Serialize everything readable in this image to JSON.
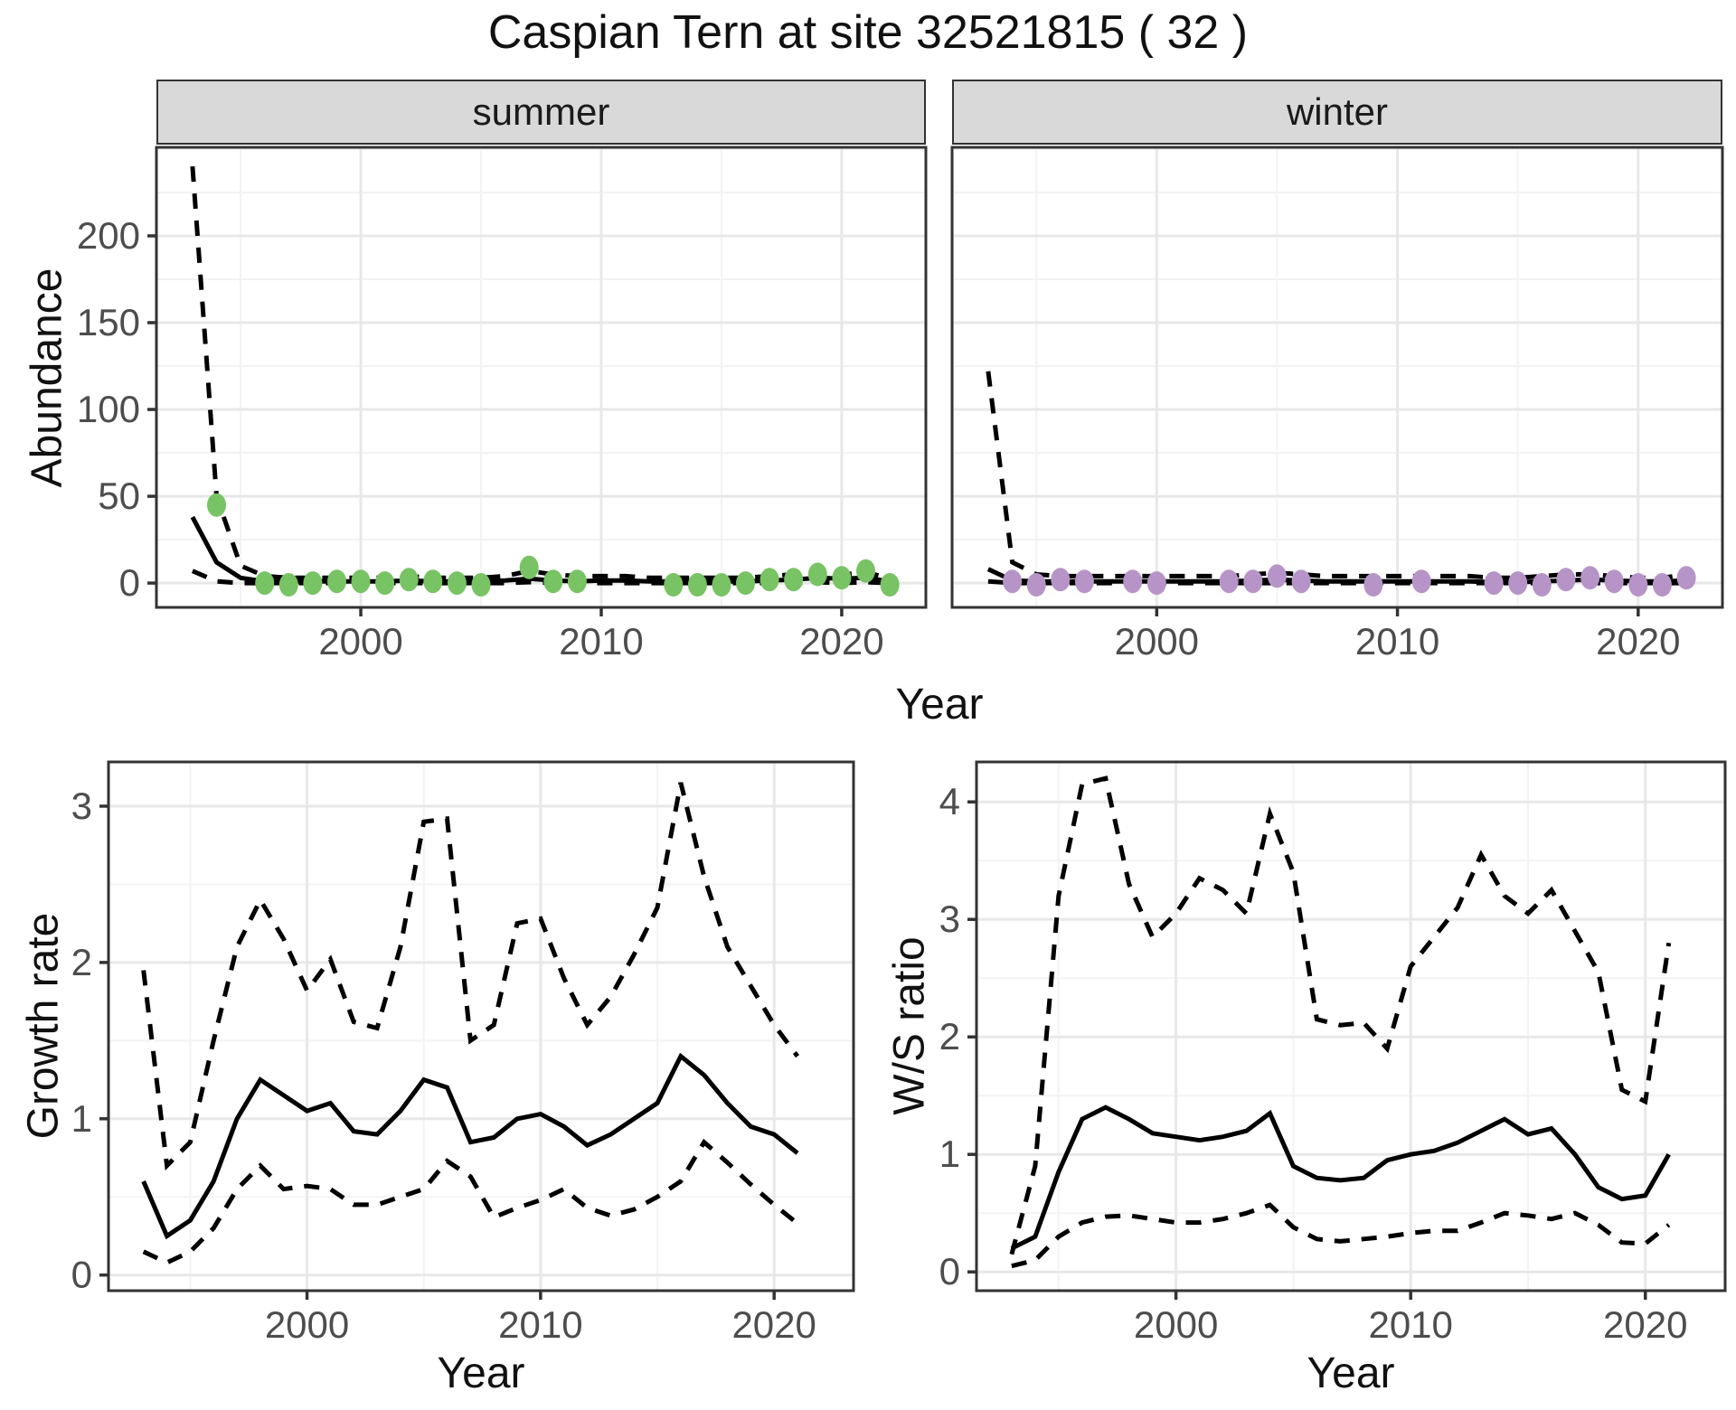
{
  "title": "Caspian Tern at site 32521815 ( 32 )",
  "colors": {
    "summer_point": "#78C364",
    "winter_point": "#B794C7",
    "line": "#000000",
    "grid_major": "#E8E8E8",
    "grid_minor": "#F3F3F3",
    "panel_border": "#333333",
    "strip_fill": "#D9D9D9",
    "axis_text": "#4D4D4D"
  },
  "top": {
    "ylabel": "Abundance",
    "xlabel": "Year",
    "facets": [
      {
        "label": "summer"
      },
      {
        "label": "winter"
      }
    ]
  },
  "bottom_left": {
    "ylabel": "Growth rate",
    "xlabel": "Year"
  },
  "bottom_right": {
    "ylabel": "W/S ratio",
    "xlabel": "Year"
  },
  "chart_data": [
    {
      "id": "su",
      "type": "line",
      "facet": "summer",
      "xlabel": "Year",
      "ylabel": "Abundance",
      "xlim": [
        1991.5,
        2023.5
      ],
      "ylim": [
        -14,
        251
      ],
      "x_major": [
        2000,
        2010,
        2020
      ],
      "x_minor": [
        1995,
        2005,
        2015
      ],
      "y_major": [
        0,
        50,
        100,
        150,
        200
      ],
      "y_minor": [
        25,
        75,
        125,
        175,
        225,
        250
      ],
      "y_labels": true,
      "x_labels": true,
      "legend": "none",
      "years": [
        1993,
        1994,
        1995,
        1996,
        1997,
        1998,
        1999,
        2000,
        2001,
        2002,
        2003,
        2004,
        2005,
        2006,
        2007,
        2008,
        2009,
        2010,
        2011,
        2012,
        2013,
        2014,
        2015,
        2016,
        2017,
        2018,
        2019,
        2020,
        2021,
        2022
      ],
      "series": [
        {
          "name": "upper80",
          "style": "dashed",
          "values": [
            240,
            50,
            10,
            4,
            3,
            3,
            3,
            3,
            3,
            4,
            3,
            3,
            3,
            4,
            7,
            5,
            4,
            4,
            4,
            3,
            3,
            3,
            3,
            3,
            4,
            5,
            6,
            5,
            6,
            3
          ]
        },
        {
          "name": "median",
          "style": "solid",
          "values": [
            38,
            12,
            3,
            1,
            1,
            1,
            1,
            1,
            1,
            1.5,
            1,
            1,
            1,
            1.5,
            2.5,
            1.5,
            1,
            1.5,
            1.5,
            1,
            1,
            1,
            1,
            1,
            1.5,
            2,
            3,
            2.5,
            3,
            1
          ]
        },
        {
          "name": "lower80",
          "style": "dashed",
          "values": [
            7,
            1,
            0,
            0,
            0,
            0,
            0,
            0,
            0,
            0,
            0,
            0,
            0,
            0,
            0.5,
            0,
            0,
            0,
            0,
            0,
            0,
            0,
            0,
            0,
            0,
            0,
            0.5,
            0,
            0.5,
            0
          ]
        }
      ],
      "points": {
        "name": "observed-summer",
        "color_key": "summer_point",
        "data": [
          [
            1994,
            45
          ],
          [
            1996,
            0
          ],
          [
            1997,
            -1
          ],
          [
            1998,
            0
          ],
          [
            1999,
            1
          ],
          [
            2000,
            1
          ],
          [
            2001,
            0
          ],
          [
            2002,
            2
          ],
          [
            2003,
            1
          ],
          [
            2004,
            0
          ],
          [
            2005,
            -1
          ],
          [
            2007,
            9
          ],
          [
            2008,
            1
          ],
          [
            2009,
            1
          ],
          [
            2013,
            -1
          ],
          [
            2014,
            -1
          ],
          [
            2015,
            -1
          ],
          [
            2016,
            0
          ],
          [
            2017,
            2
          ],
          [
            2018,
            2
          ],
          [
            2019,
            5
          ],
          [
            2020,
            3
          ],
          [
            2021,
            7
          ],
          [
            2022,
            -1
          ]
        ]
      }
    },
    {
      "id": "wi",
      "type": "line",
      "facet": "winter",
      "xlabel": "Year",
      "ylabel": "Abundance",
      "xlim": [
        1991.5,
        2023.5
      ],
      "ylim": [
        -14,
        251
      ],
      "x_major": [
        2000,
        2010,
        2020
      ],
      "x_minor": [
        1995,
        2005,
        2015
      ],
      "y_major": [
        0,
        50,
        100,
        150,
        200
      ],
      "y_minor": [
        25,
        75,
        125,
        175,
        225,
        250
      ],
      "y_labels": false,
      "x_labels": true,
      "legend": "none",
      "years": [
        1993,
        1994,
        1995,
        1996,
        1997,
        1998,
        1999,
        2000,
        2001,
        2002,
        2003,
        2004,
        2005,
        2006,
        2007,
        2008,
        2009,
        2010,
        2011,
        2012,
        2013,
        2014,
        2015,
        2016,
        2017,
        2018,
        2019,
        2020,
        2021,
        2022
      ],
      "series": [
        {
          "name": "upper80",
          "style": "dashed",
          "values": [
            122,
            12,
            5,
            4,
            4,
            4,
            4,
            4,
            4,
            4,
            4,
            5,
            6,
            5,
            4,
            4,
            4,
            4,
            4,
            4,
            4,
            3,
            3,
            4,
            5,
            5,
            4,
            3,
            3,
            5
          ]
        },
        {
          "name": "median",
          "style": "solid",
          "values": [
            8,
            1.5,
            1,
            1,
            1,
            1,
            1,
            1,
            1,
            1,
            1,
            1.5,
            2,
            1.5,
            1,
            1,
            1,
            1,
            1,
            1,
            1,
            0.5,
            0.5,
            1,
            1.5,
            2,
            1.5,
            1,
            1,
            1.5
          ]
        },
        {
          "name": "lower80",
          "style": "dashed",
          "values": [
            1,
            0,
            0,
            0,
            0,
            0,
            0,
            0,
            0,
            0,
            0,
            0,
            0,
            0,
            0,
            0,
            0,
            0,
            0,
            0,
            0,
            0,
            0,
            0,
            0,
            0,
            0,
            0,
            0,
            0
          ]
        }
      ],
      "points": {
        "name": "observed-winter",
        "color_key": "winter_point",
        "data": [
          [
            1994,
            1
          ],
          [
            1995,
            -1
          ],
          [
            1996,
            2
          ],
          [
            1997,
            1
          ],
          [
            1999,
            1
          ],
          [
            2000,
            0
          ],
          [
            2003,
            1
          ],
          [
            2004,
            1
          ],
          [
            2005,
            4
          ],
          [
            2006,
            1
          ],
          [
            2009,
            -1
          ],
          [
            2011,
            1
          ],
          [
            2014,
            0
          ],
          [
            2015,
            0
          ],
          [
            2016,
            -1
          ],
          [
            2017,
            2
          ],
          [
            2018,
            3
          ],
          [
            2019,
            1
          ],
          [
            2020,
            -1
          ],
          [
            2021,
            -1
          ],
          [
            2022,
            3
          ]
        ]
      }
    },
    {
      "id": "gr",
      "type": "line",
      "facet": null,
      "xlabel": "Year",
      "ylabel": "Growth rate",
      "xlim": [
        1991.5,
        2023.4
      ],
      "ylim": [
        -0.1,
        3.283
      ],
      "x_major": [
        2000,
        2010,
        2020
      ],
      "x_minor": [
        1995,
        2005,
        2015
      ],
      "y_major": [
        0,
        1,
        2,
        3
      ],
      "y_minor": [
        0.5,
        1.5,
        2.5
      ],
      "y_labels": true,
      "x_labels": true,
      "legend": "none",
      "years": [
        1993,
        1994,
        1995,
        1996,
        1997,
        1998,
        1999,
        2000,
        2001,
        2002,
        2003,
        2004,
        2005,
        2006,
        2007,
        2008,
        2009,
        2010,
        2011,
        2012,
        2013,
        2014,
        2015,
        2016,
        2017,
        2018,
        2019,
        2020,
        2021
      ],
      "series": [
        {
          "name": "upper80",
          "style": "dashed",
          "values": [
            1.95,
            0.7,
            0.85,
            1.5,
            2.1,
            2.4,
            2.15,
            1.82,
            2.02,
            1.62,
            1.58,
            2.1,
            2.9,
            2.92,
            1.5,
            1.6,
            2.25,
            2.28,
            1.9,
            1.6,
            1.78,
            2.05,
            2.35,
            3.15,
            2.55,
            2.1,
            1.85,
            1.6,
            1.4
          ]
        },
        {
          "name": "median",
          "style": "solid",
          "values": [
            0.6,
            0.25,
            0.35,
            0.6,
            1.0,
            1.25,
            1.15,
            1.05,
            1.1,
            0.92,
            0.9,
            1.05,
            1.25,
            1.2,
            0.85,
            0.88,
            1.0,
            1.03,
            0.95,
            0.83,
            0.9,
            1.0,
            1.1,
            1.4,
            1.28,
            1.1,
            0.95,
            0.9,
            0.78
          ]
        },
        {
          "name": "lower80",
          "style": "dashed",
          "values": [
            0.15,
            0.08,
            0.15,
            0.3,
            0.55,
            0.7,
            0.55,
            0.57,
            0.55,
            0.45,
            0.45,
            0.5,
            0.55,
            0.73,
            0.63,
            0.37,
            0.43,
            0.48,
            0.55,
            0.43,
            0.38,
            0.42,
            0.5,
            0.6,
            0.85,
            0.72,
            0.58,
            0.45,
            0.33
          ]
        }
      ],
      "points": null
    },
    {
      "id": "ws",
      "type": "line",
      "facet": null,
      "xlabel": "Year",
      "ylabel": "W/S ratio",
      "xlim": [
        1991.5,
        2023.4
      ],
      "ylim": [
        -0.16,
        4.34
      ],
      "x_major": [
        2000,
        2010,
        2020
      ],
      "x_minor": [
        1995,
        2005,
        2015
      ],
      "y_major": [
        0,
        1,
        2,
        3,
        4
      ],
      "y_minor": [
        0.5,
        1.5,
        2.5,
        3.5
      ],
      "y_labels": true,
      "x_labels": true,
      "legend": "none",
      "years": [
        1993,
        1994,
        1995,
        1996,
        1997,
        1998,
        1999,
        2000,
        2001,
        2002,
        2003,
        2004,
        2005,
        2006,
        2007,
        2008,
        2009,
        2010,
        2011,
        2012,
        2013,
        2014,
        2015,
        2016,
        2017,
        2018,
        2019,
        2020,
        2021
      ],
      "series": [
        {
          "name": "upper80",
          "style": "dashed",
          "values": [
            0.15,
            0.9,
            3.2,
            4.15,
            4.2,
            3.3,
            2.85,
            3.05,
            3.35,
            3.25,
            3.05,
            3.9,
            3.4,
            2.15,
            2.1,
            2.12,
            1.9,
            2.6,
            2.85,
            3.1,
            3.55,
            3.2,
            3.05,
            3.25,
            2.9,
            2.55,
            1.55,
            1.45,
            2.8
          ]
        },
        {
          "name": "median",
          "style": "solid",
          "values": [
            0.2,
            0.3,
            0.85,
            1.3,
            1.4,
            1.3,
            1.18,
            1.15,
            1.12,
            1.15,
            1.2,
            1.35,
            0.9,
            0.8,
            0.78,
            0.8,
            0.95,
            1.0,
            1.03,
            1.1,
            1.2,
            1.3,
            1.17,
            1.22,
            1.0,
            0.72,
            0.62,
            0.65,
            1.0
          ]
        },
        {
          "name": "lower80",
          "style": "dashed",
          "values": [
            0.05,
            0.1,
            0.3,
            0.42,
            0.47,
            0.48,
            0.45,
            0.42,
            0.42,
            0.45,
            0.5,
            0.57,
            0.38,
            0.28,
            0.26,
            0.28,
            0.3,
            0.33,
            0.35,
            0.35,
            0.42,
            0.5,
            0.48,
            0.45,
            0.5,
            0.4,
            0.25,
            0.24,
            0.4
          ]
        }
      ],
      "points": null
    }
  ]
}
